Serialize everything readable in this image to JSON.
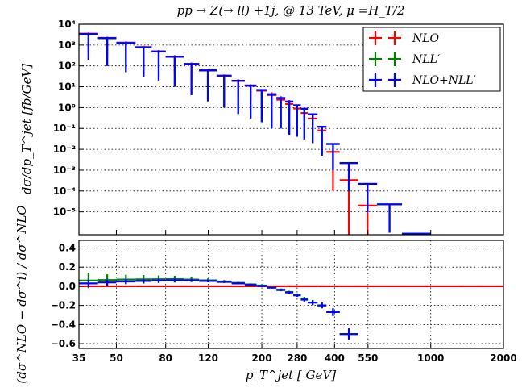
{
  "chart_data": {
    "type": "step-histogram",
    "title": "pp → Z(→ ll) +1j, @ 13 TeV, μ =H_T/2",
    "xlabel": "p_T^jet [ GeV]",
    "xscale": "log",
    "xlim": [
      35,
      2000
    ],
    "xticks": [
      35,
      50,
      80,
      120,
      200,
      280,
      400,
      550,
      1000,
      2000
    ],
    "x_tick_labels": [
      "35",
      "50",
      "80",
      "120",
      "200",
      "280",
      "400",
      "550",
      "1000",
      "2000"
    ],
    "legend_position": "top-right",
    "colors": {
      "NLO": "#ff0000",
      "NLL": "#008000",
      "NLO+NLL": "#0000ff"
    },
    "bin_edges": [
      35,
      42,
      50,
      60,
      70,
      80,
      95,
      110,
      130,
      150,
      170,
      190,
      210,
      230,
      250,
      270,
      290,
      310,
      340,
      370,
      420,
      500,
      600,
      760,
      1000,
      1300,
      1600,
      2000
    ],
    "top_panel": {
      "ylabel": "dσ/dp_T^jet [fb/GeV]",
      "yscale": "log",
      "ylim": [
        8e-07,
        10000
      ],
      "y_tick_labels": [
        "10⁴",
        "10³",
        "10²",
        "10¹",
        "10⁰",
        "10⁻¹",
        "10⁻²",
        "10⁻³",
        "10⁻⁴",
        "10⁻⁵"
      ],
      "grid": true,
      "series": [
        {
          "name": "NLO",
          "color": "#ff0000",
          "values": [
            3500,
            2200,
            1300,
            800,
            500,
            280,
            125,
            60,
            33,
            19,
            11,
            6.5,
            4.0,
            2.4,
            1.5,
            0.9,
            0.55,
            0.3,
            0.08,
            0.0075,
            0.00033,
            2e-05,
            null,
            null,
            null,
            null,
            null
          ],
          "err_low": [
            3000,
            1900,
            1100,
            680,
            420,
            235,
            105,
            50,
            27,
            15,
            9,
            5.3,
            2.6,
            1.3,
            0.75,
            0.42,
            0.25,
            0.09,
            0.075,
            0.0074,
            0.00033,
            2e-05,
            null,
            null,
            null,
            null,
            null
          ],
          "err_high": [
            4000,
            2500,
            1500,
            920,
            580,
            325,
            145,
            70,
            39,
            23,
            13,
            7.7,
            5.4,
            3.5,
            2.3,
            1.4,
            0.85,
            0.5,
            0.12,
            0.012,
            0.0021,
            0.00022,
            null,
            null,
            null,
            null,
            null
          ]
        },
        {
          "name": "NLL′",
          "color": "#008000",
          "values": [
            3400,
            2150,
            1250,
            780,
            490,
            275,
            123,
            61,
            34,
            19.5,
            11.5,
            7.0,
            4.4,
            2.9,
            1.95,
            1.3,
            0.88,
            0.48,
            0.12,
            0.018,
            0.0022,
            0.00022,
            2.3e-05,
            9e-07,
            null,
            null,
            null
          ],
          "err_low": [
            3200,
            2050,
            1200,
            750,
            470,
            265,
            119,
            59,
            33,
            19,
            11.2,
            6.8,
            4.3,
            2.8,
            1.9,
            1.26,
            0.85,
            0.46,
            0.115,
            0.017,
            0.0021,
            0.00021,
            2.2e-05,
            8.5e-07,
            null,
            null,
            null
          ],
          "err_high": [
            3600,
            2250,
            1300,
            810,
            510,
            285,
            127,
            63,
            35,
            20,
            11.8,
            7.2,
            4.5,
            3.0,
            2.0,
            1.34,
            0.91,
            0.5,
            0.125,
            0.019,
            0.0023,
            0.00023,
            2.4e-05,
            9.5e-07,
            null,
            null,
            null
          ]
        },
        {
          "name": "NLO+NLL′",
          "color": "#0000ff",
          "values": [
            3400,
            2150,
            1250,
            780,
            490,
            275,
            123,
            61,
            34,
            19.5,
            11.5,
            7.0,
            4.4,
            2.9,
            1.95,
            1.3,
            0.88,
            0.48,
            0.12,
            0.018,
            0.0022,
            0.00022,
            2.3e-05,
            9e-07,
            null,
            null,
            null
          ],
          "err_low": [
            3200,
            2050,
            1200,
            750,
            470,
            265,
            119,
            59,
            33,
            19,
            11.2,
            6.8,
            4.3,
            2.8,
            1.9,
            1.26,
            0.85,
            0.46,
            0.115,
            0.017,
            0.0021,
            0.00021,
            2.2e-05,
            8.5e-07,
            null,
            null,
            null
          ],
          "err_high": [
            3600,
            2250,
            1300,
            810,
            510,
            285,
            127,
            63,
            35,
            20,
            11.8,
            7.2,
            4.5,
            3.0,
            2.0,
            1.34,
            0.91,
            0.5,
            0.125,
            0.019,
            0.0023,
            0.00023,
            2.4e-05,
            9.5e-07,
            null,
            null,
            null
          ]
        }
      ]
    },
    "bottom_panel": {
      "ylabel": "(dσ^NLO − dσ^i) / dσ^NLO",
      "ylim": [
        -0.65,
        0.48
      ],
      "yticks": [
        0.4,
        0.2,
        0.0,
        -0.2,
        -0.4,
        -0.6
      ],
      "y_tick_labels": [
        "0.4",
        "0.2",
        "0.0",
        "−0.2",
        "−0.4",
        "−0.6"
      ],
      "grid": true,
      "series": [
        {
          "name": "NLO",
          "color": "#ff0000",
          "values": [
            0,
            0,
            0,
            0,
            0,
            0,
            0,
            0,
            0,
            0,
            0,
            0,
            0,
            0,
            0,
            0,
            0,
            0,
            0,
            0,
            0,
            0,
            0,
            0,
            0,
            0,
            0
          ],
          "err": [
            0,
            0,
            0,
            0,
            0,
            0,
            0,
            0,
            0,
            0,
            0,
            0,
            0,
            0,
            0,
            0,
            0,
            0,
            0,
            0,
            0,
            0,
            0,
            0,
            0,
            0,
            0
          ]
        },
        {
          "name": "NLL′",
          "color": "#008000",
          "values": [
            0.06,
            0.065,
            0.07,
            0.072,
            0.073,
            0.074,
            0.07,
            0.062,
            0.05,
            0.035,
            0.02,
            0.008,
            -0.01,
            -0.035,
            -0.06,
            -0.09,
            -0.13,
            -0.17,
            -0.2,
            -0.27,
            -0.5,
            null,
            null,
            null,
            null,
            null,
            null
          ],
          "err": [
            0.08,
            0.06,
            0.05,
            0.045,
            0.04,
            0.035,
            0.025,
            0.02,
            0.015,
            0.012,
            0.01,
            0.01,
            0.01,
            0.012,
            0.012,
            0.015,
            0.02,
            0.025,
            0.03,
            0.04,
            0.05,
            null,
            null,
            null,
            null,
            null,
            null
          ]
        },
        {
          "name": "NLO+NLL′",
          "color": "#0000ff",
          "values": [
            0.03,
            0.04,
            0.05,
            0.055,
            0.06,
            0.062,
            0.06,
            0.055,
            0.045,
            0.03,
            0.015,
            0.003,
            -0.015,
            -0.04,
            -0.065,
            -0.095,
            -0.14,
            -0.17,
            -0.2,
            -0.27,
            -0.5,
            null,
            null,
            null,
            null,
            null,
            null
          ],
          "err": [
            0.04,
            0.03,
            0.025,
            0.02,
            0.02,
            0.018,
            0.015,
            0.012,
            0.01,
            0.01,
            0.01,
            0.01,
            0.01,
            0.012,
            0.012,
            0.015,
            0.02,
            0.025,
            0.03,
            0.04,
            0.06,
            null,
            null,
            null,
            null,
            null,
            null
          ]
        }
      ]
    }
  }
}
